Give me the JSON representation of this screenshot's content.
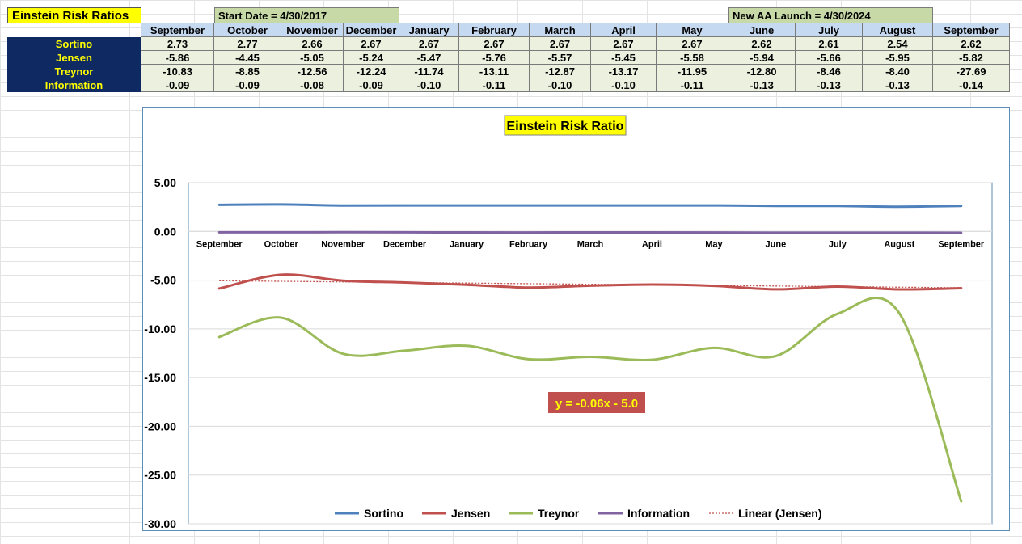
{
  "sheet": {
    "title": "Einstein Risk Ratios",
    "start_date": "Start Date = 4/30/2017",
    "launch_date": "New AA Launch = 4/30/2024"
  },
  "table": {
    "months": [
      "September",
      "October",
      "November",
      "December",
      "January",
      "February",
      "March",
      "April",
      "May",
      "June",
      "July",
      "August",
      "September"
    ],
    "rows": [
      {
        "label": "Sortino",
        "values": [
          "2.73",
          "2.77",
          "2.66",
          "2.67",
          "2.67",
          "2.67",
          "2.67",
          "2.67",
          "2.67",
          "2.62",
          "2.61",
          "2.54",
          "2.62"
        ]
      },
      {
        "label": "Jensen",
        "values": [
          "-5.86",
          "-4.45",
          "-5.05",
          "-5.24",
          "-5.47",
          "-5.76",
          "-5.57",
          "-5.45",
          "-5.58",
          "-5.94",
          "-5.66",
          "-5.95",
          "-5.82"
        ]
      },
      {
        "label": "Treynor",
        "values": [
          "-10.83",
          "-8.85",
          "-12.56",
          "-12.24",
          "-11.74",
          "-13.11",
          "-12.87",
          "-13.17",
          "-11.95",
          "-12.80",
          "-8.46",
          "-8.40",
          "-27.69"
        ]
      },
      {
        "label": "Information",
        "values": [
          "-0.09",
          "-0.09",
          "-0.08",
          "-0.09",
          "-0.10",
          "-0.11",
          "-0.10",
          "-0.10",
          "-0.11",
          "-0.13",
          "-0.13",
          "-0.13",
          "-0.14"
        ]
      }
    ]
  },
  "chart_data": {
    "type": "line",
    "title": "Einstein Risk Ratio",
    "categories": [
      "September",
      "October",
      "November",
      "December",
      "January",
      "February",
      "March",
      "April",
      "May",
      "June",
      "July",
      "August",
      "September"
    ],
    "ylim": [
      -30,
      5
    ],
    "yticks": [
      "5.00",
      "0.00",
      "-5.00",
      "-10.00",
      "-15.00",
      "-20.00",
      "-25.00",
      "-30.00"
    ],
    "grid": true,
    "legend_position": "bottom",
    "series": [
      {
        "name": "Sortino",
        "color": "#4f81bd",
        "values": [
          2.73,
          2.77,
          2.66,
          2.67,
          2.67,
          2.67,
          2.67,
          2.67,
          2.67,
          2.62,
          2.61,
          2.54,
          2.62
        ]
      },
      {
        "name": "Jensen",
        "color": "#c0504d",
        "values": [
          -5.86,
          -4.45,
          -5.05,
          -5.24,
          -5.47,
          -5.76,
          -5.57,
          -5.45,
          -5.58,
          -5.94,
          -5.66,
          -5.95,
          -5.82
        ]
      },
      {
        "name": "Treynor",
        "color": "#9bbb59",
        "values": [
          -10.83,
          -8.85,
          -12.56,
          -12.24,
          -11.74,
          -13.11,
          -12.87,
          -13.17,
          -11.95,
          -12.8,
          -8.46,
          -8.4,
          -27.69
        ]
      },
      {
        "name": "Information",
        "color": "#8064a2",
        "values": [
          -0.09,
          -0.09,
          -0.08,
          -0.09,
          -0.1,
          -0.11,
          -0.1,
          -0.1,
          -0.11,
          -0.13,
          -0.13,
          -0.13,
          -0.14
        ]
      }
    ],
    "trendline": {
      "name": "Linear (Jensen)",
      "color": "#c0504d",
      "slope": -0.06,
      "intercept": -5.0
    },
    "annotation": {
      "text": "y = -0.06x - 5.0",
      "background": "#c0504d",
      "color": "#ffff00"
    }
  }
}
